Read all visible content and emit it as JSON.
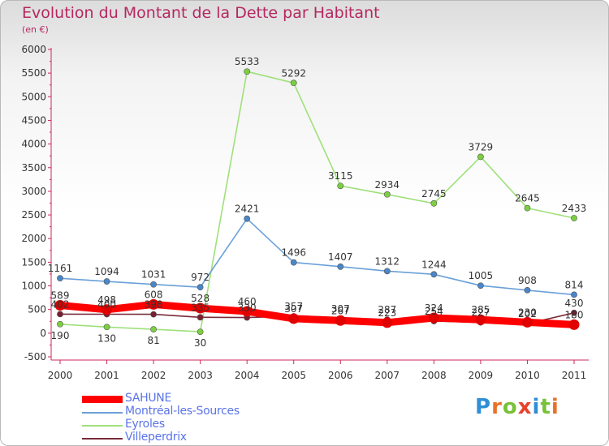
{
  "title": "Evolution du Montant de la Dette par Habitant",
  "subtitle": "(en €)",
  "logo_text": "Proxiti",
  "chart_data": {
    "type": "line",
    "title": "Evolution du Montant de la Dette par Habitant",
    "subtitle": "(en €)",
    "xlabel": "",
    "ylabel": "",
    "categories": [
      "2000",
      "2001",
      "2002",
      "2003",
      "2004",
      "2005",
      "2006",
      "2007",
      "2008",
      "2009",
      "2010",
      "2011"
    ],
    "ylim": [
      -500,
      6000
    ],
    "yticks": [
      -500,
      0,
      500,
      1000,
      1500,
      2000,
      2500,
      3000,
      3500,
      4000,
      4500,
      5000,
      5500,
      6000
    ],
    "grid": false,
    "legend_position": "bottom-left",
    "series": [
      {
        "name": "SAHUNE",
        "color": "#ff0000",
        "marker_color": "#e00000",
        "values": [
          589,
          498,
          608,
          528,
          460,
          307,
          267,
          223,
          324,
          285,
          230,
          180
        ]
      },
      {
        "name": "Montréal-les-Sources",
        "color": "#6aa0d8",
        "marker_color": "#4a86c8",
        "values": [
          1161,
          1094,
          1031,
          972,
          2421,
          1496,
          1407,
          1312,
          1244,
          1005,
          908,
          814
        ]
      },
      {
        "name": "Eyroles",
        "color": "#9fe07a",
        "marker_color": "#7ccf40",
        "values": [
          190,
          130,
          81,
          30,
          5533,
          5292,
          3115,
          2934,
          2745,
          3729,
          2645,
          2433
        ]
      },
      {
        "name": "Villeperdrix",
        "color": "#7a2a3a",
        "marker_color": "#7a1f2f",
        "values": [
          402,
          400,
          398,
          335,
          330,
          357,
          307,
          287,
          254,
          227,
          202,
          430
        ]
      }
    ]
  }
}
